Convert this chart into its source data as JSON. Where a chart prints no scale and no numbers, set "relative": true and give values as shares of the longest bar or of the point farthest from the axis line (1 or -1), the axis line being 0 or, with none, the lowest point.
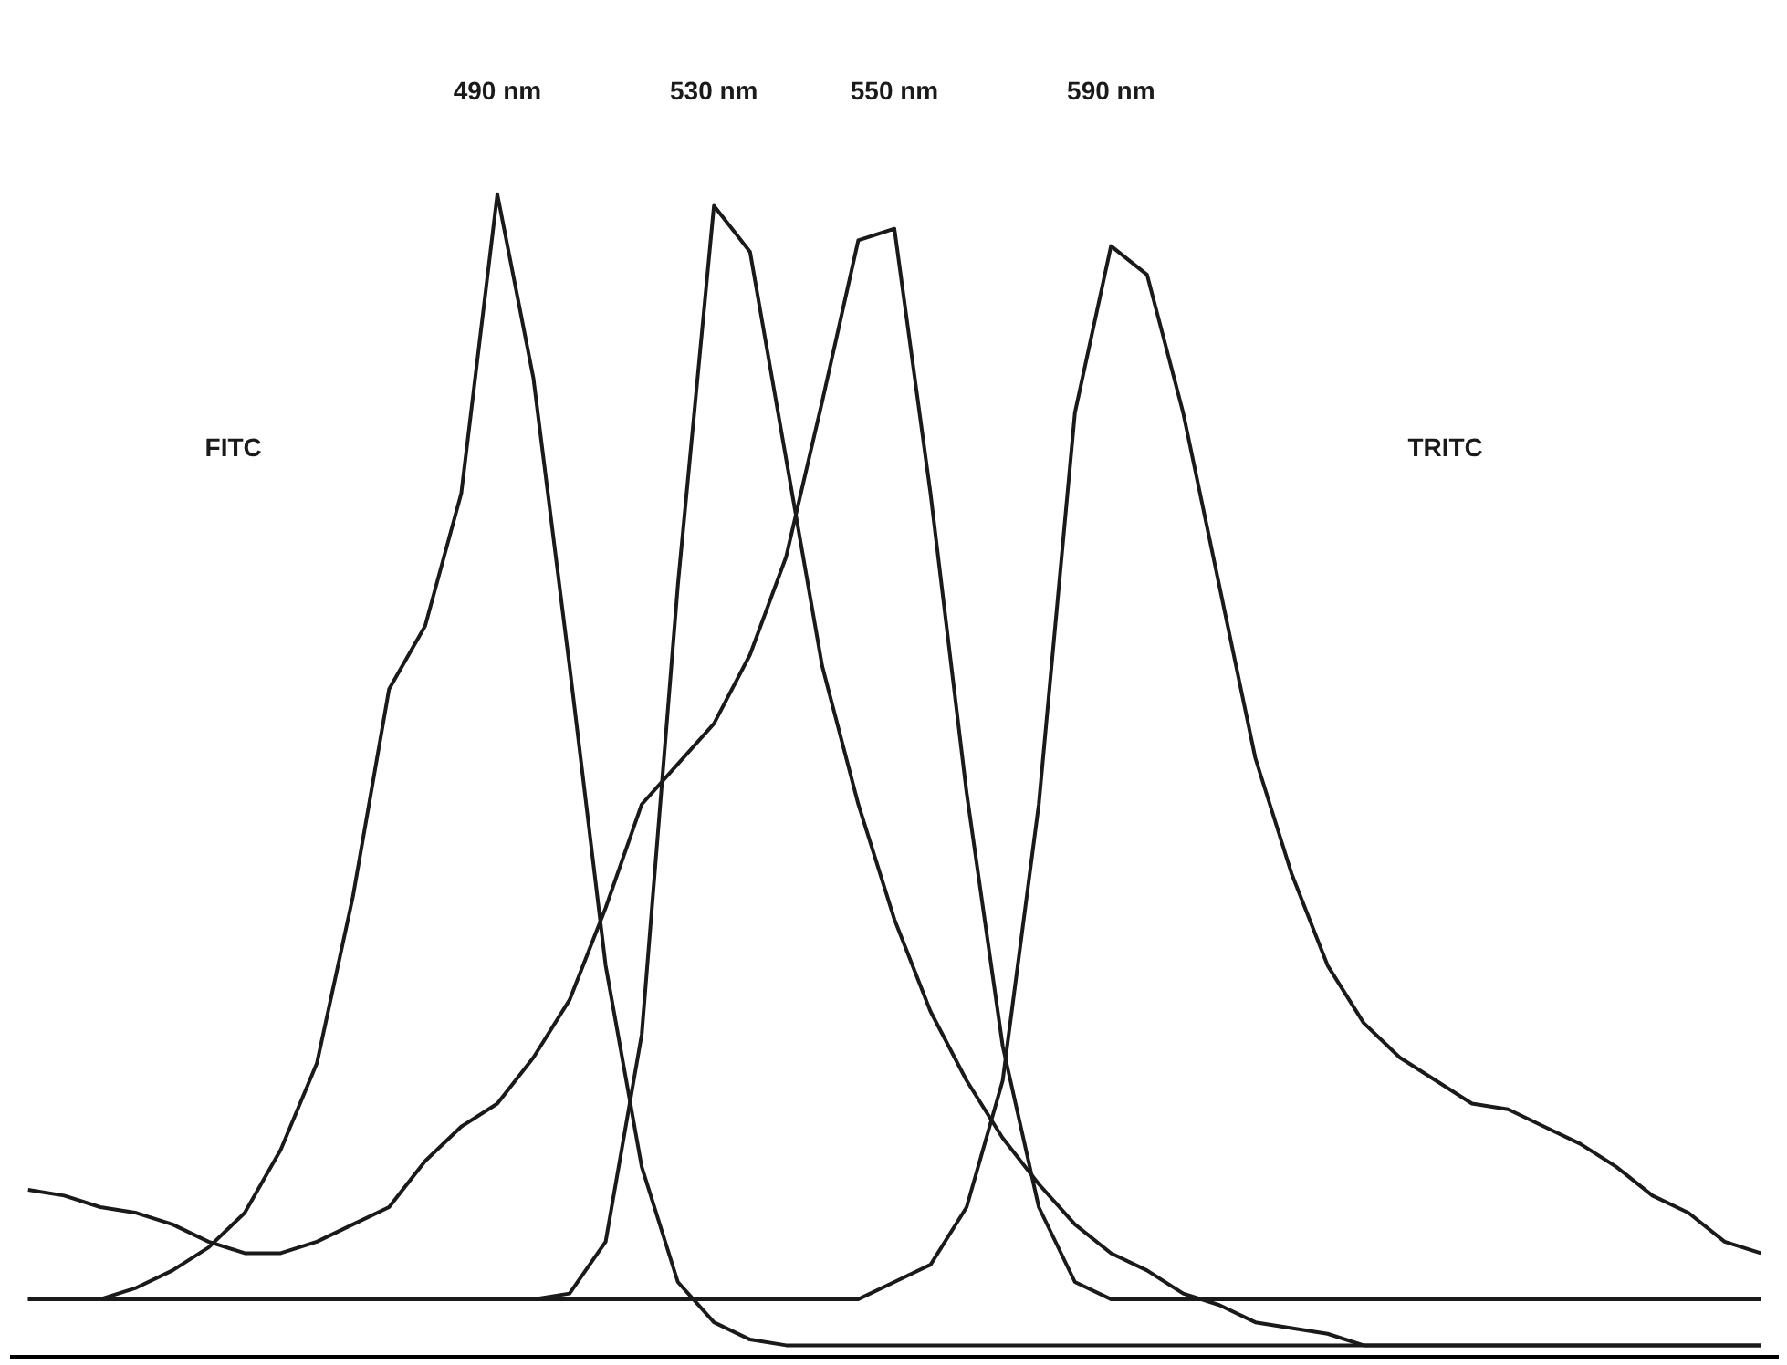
{
  "chart_data": {
    "type": "line",
    "relative": true,
    "marker": "none",
    "line_style": "solid",
    "categories": [
      null,
      null,
      null,
      null,
      null,
      null,
      null,
      null,
      null,
      null,
      null,
      null,
      null,
      null,
      null,
      null,
      null,
      null,
      null,
      null,
      null,
      null,
      null,
      null,
      null,
      null,
      null,
      null,
      null,
      null,
      null,
      null,
      null,
      null,
      null,
      null,
      null,
      null,
      null,
      null,
      null,
      null,
      null,
      null,
      null,
      null,
      null,
      null,
      null
    ],
    "annotations": [
      "490 nm",
      "530 nm",
      "550 nm",
      "590 nm",
      "FITC",
      "TRITC"
    ],
    "series": [
      {
        "color": "#1a1a1a",
        "values": [
          0.04,
          0.04,
          0.04,
          0.05,
          0.065,
          0.085,
          0.115,
          0.17,
          0.245,
          0.39,
          0.57,
          0.625,
          0.74,
          1.0,
          0.84,
          0.59,
          0.33,
          0.155,
          0.055,
          0.02,
          0.005,
          0,
          0,
          0,
          0,
          0,
          0,
          0,
          0,
          0,
          0,
          0,
          0,
          0,
          0,
          0,
          0,
          0,
          0,
          0,
          0,
          0,
          0,
          0,
          0,
          0,
          0,
          0,
          0
        ]
      },
      {
        "color": "#1a1a1a",
        "values": [
          0.04,
          0.04,
          0.04,
          0.04,
          0.04,
          0.04,
          0.04,
          0.04,
          0.04,
          0.04,
          0.04,
          0.04,
          0.04,
          0.04,
          0.04,
          0.045,
          0.09,
          0.27,
          0.66,
          0.99,
          0.95,
          0.77,
          0.59,
          0.47,
          0.37,
          0.29,
          0.23,
          0.18,
          0.14,
          0.105,
          0.08,
          0.065,
          0.045,
          0.035,
          0.02,
          0.015,
          0.01,
          0,
          0,
          0,
          0,
          0,
          0,
          0,
          0,
          0,
          0,
          0,
          0
        ]
      },
      {
        "color": "#1a1a1a",
        "values": [
          0.135,
          0.13,
          0.12,
          0.115,
          0.105,
          0.09,
          0.08,
          0.08,
          0.09,
          0.105,
          0.12,
          0.16,
          0.19,
          0.21,
          0.25,
          0.3,
          0.38,
          0.47,
          0.505,
          0.54,
          0.6,
          0.685,
          0.82,
          0.96,
          0.97,
          0.74,
          0.48,
          0.26,
          0.12,
          0.055,
          0.04,
          0.04,
          0.04,
          0.04,
          0.04,
          0.04,
          0.04,
          0.04,
          0.04,
          0.04,
          0.04,
          0.04,
          0.04,
          0.04,
          0.04,
          0.04,
          0.04,
          0.04,
          0.04
        ]
      },
      {
        "color": "#1a1a1a",
        "values": [
          0.04,
          0.04,
          0.04,
          0.04,
          0.04,
          0.04,
          0.04,
          0.04,
          0.04,
          0.04,
          0.04,
          0.04,
          0.04,
          0.04,
          0.04,
          0.04,
          0.04,
          0.04,
          0.04,
          0.04,
          0.04,
          0.04,
          0.04,
          0.04,
          0.055,
          0.07,
          0.12,
          0.23,
          0.47,
          0.81,
          0.955,
          0.93,
          0.81,
          0.66,
          0.51,
          0.41,
          0.33,
          0.28,
          0.25,
          0.23,
          0.21,
          0.205,
          0.19,
          0.175,
          0.155,
          0.13,
          0.115,
          0.09,
          0.08
        ]
      }
    ]
  }
}
